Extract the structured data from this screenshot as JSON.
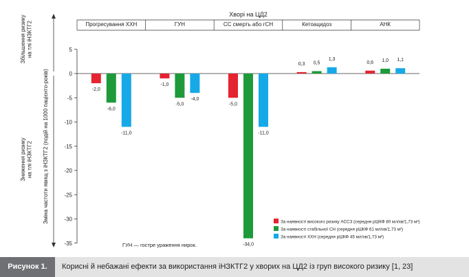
{
  "chart_data": {
    "type": "bar",
    "title": "Хворі на ЦД2",
    "groups": [
      "Прогресування ХХН",
      "ГУН",
      "СС смерть або гСН",
      "Кетоацидоз",
      "АНК"
    ],
    "series": [
      {
        "name": "За наявності високого ризику АССЗ (середня рШКФ 80 мл/хв/1,73 м²)",
        "color": "#e52431",
        "values": [
          -2.0,
          -1.0,
          -5.0,
          0.3,
          0.6
        ],
        "labels": [
          "-2,0",
          "-1,0",
          "-5,0",
          "0,3",
          "0,6"
        ]
      },
      {
        "name": "За наявності стабільної СН (середня рШКФ 61 мл/хв/1,73 м²)",
        "color": "#1e9a3b",
        "values": [
          -6.0,
          -5.0,
          -34.0,
          0.5,
          1.0
        ],
        "labels": [
          "-6,0",
          "-5,0",
          "-34,0",
          "0,5",
          "1,0"
        ]
      },
      {
        "name": "За наявності ХХН (середня рШКФ 45 мл/хв/1,73 м²)",
        "color": "#16a9e8",
        "values": [
          -11.0,
          -4.0,
          -11.0,
          1.3,
          1.1
        ],
        "labels": [
          "-11,0",
          "-4,0",
          "-11,0",
          "1,3",
          "1,1"
        ]
      }
    ],
    "ylabel": "Зміна частоти явищ з іНЗКТГ2 (подій на 1000 пацієнто-років)",
    "ylabel_up": [
      "Збільшення ризику",
      "на тлі іНЗКТГ2"
    ],
    "ylabel_down": [
      "Зниження ризику",
      "на тлі іНЗКТГ2"
    ],
    "ylim": [
      -35,
      5
    ],
    "yticks": [
      5,
      0,
      -5,
      -10,
      -15,
      -20,
      -25,
      -30,
      -35
    ],
    "ytick_labels": [
      "5",
      "0",
      "-5",
      "-10",
      "-15",
      "-20",
      "-25",
      "-30",
      "-35"
    ],
    "note": "ГУН — гостре ураження нирок.",
    "legend_position": "bottom-right",
    "grid": false
  },
  "caption": {
    "tag": "Рисунок 1.",
    "text": "Корисні й небажані ефекти за використання іНЗКТГ2 у хворих на ЦД2 із груп високого ризику [1, 23]"
  }
}
